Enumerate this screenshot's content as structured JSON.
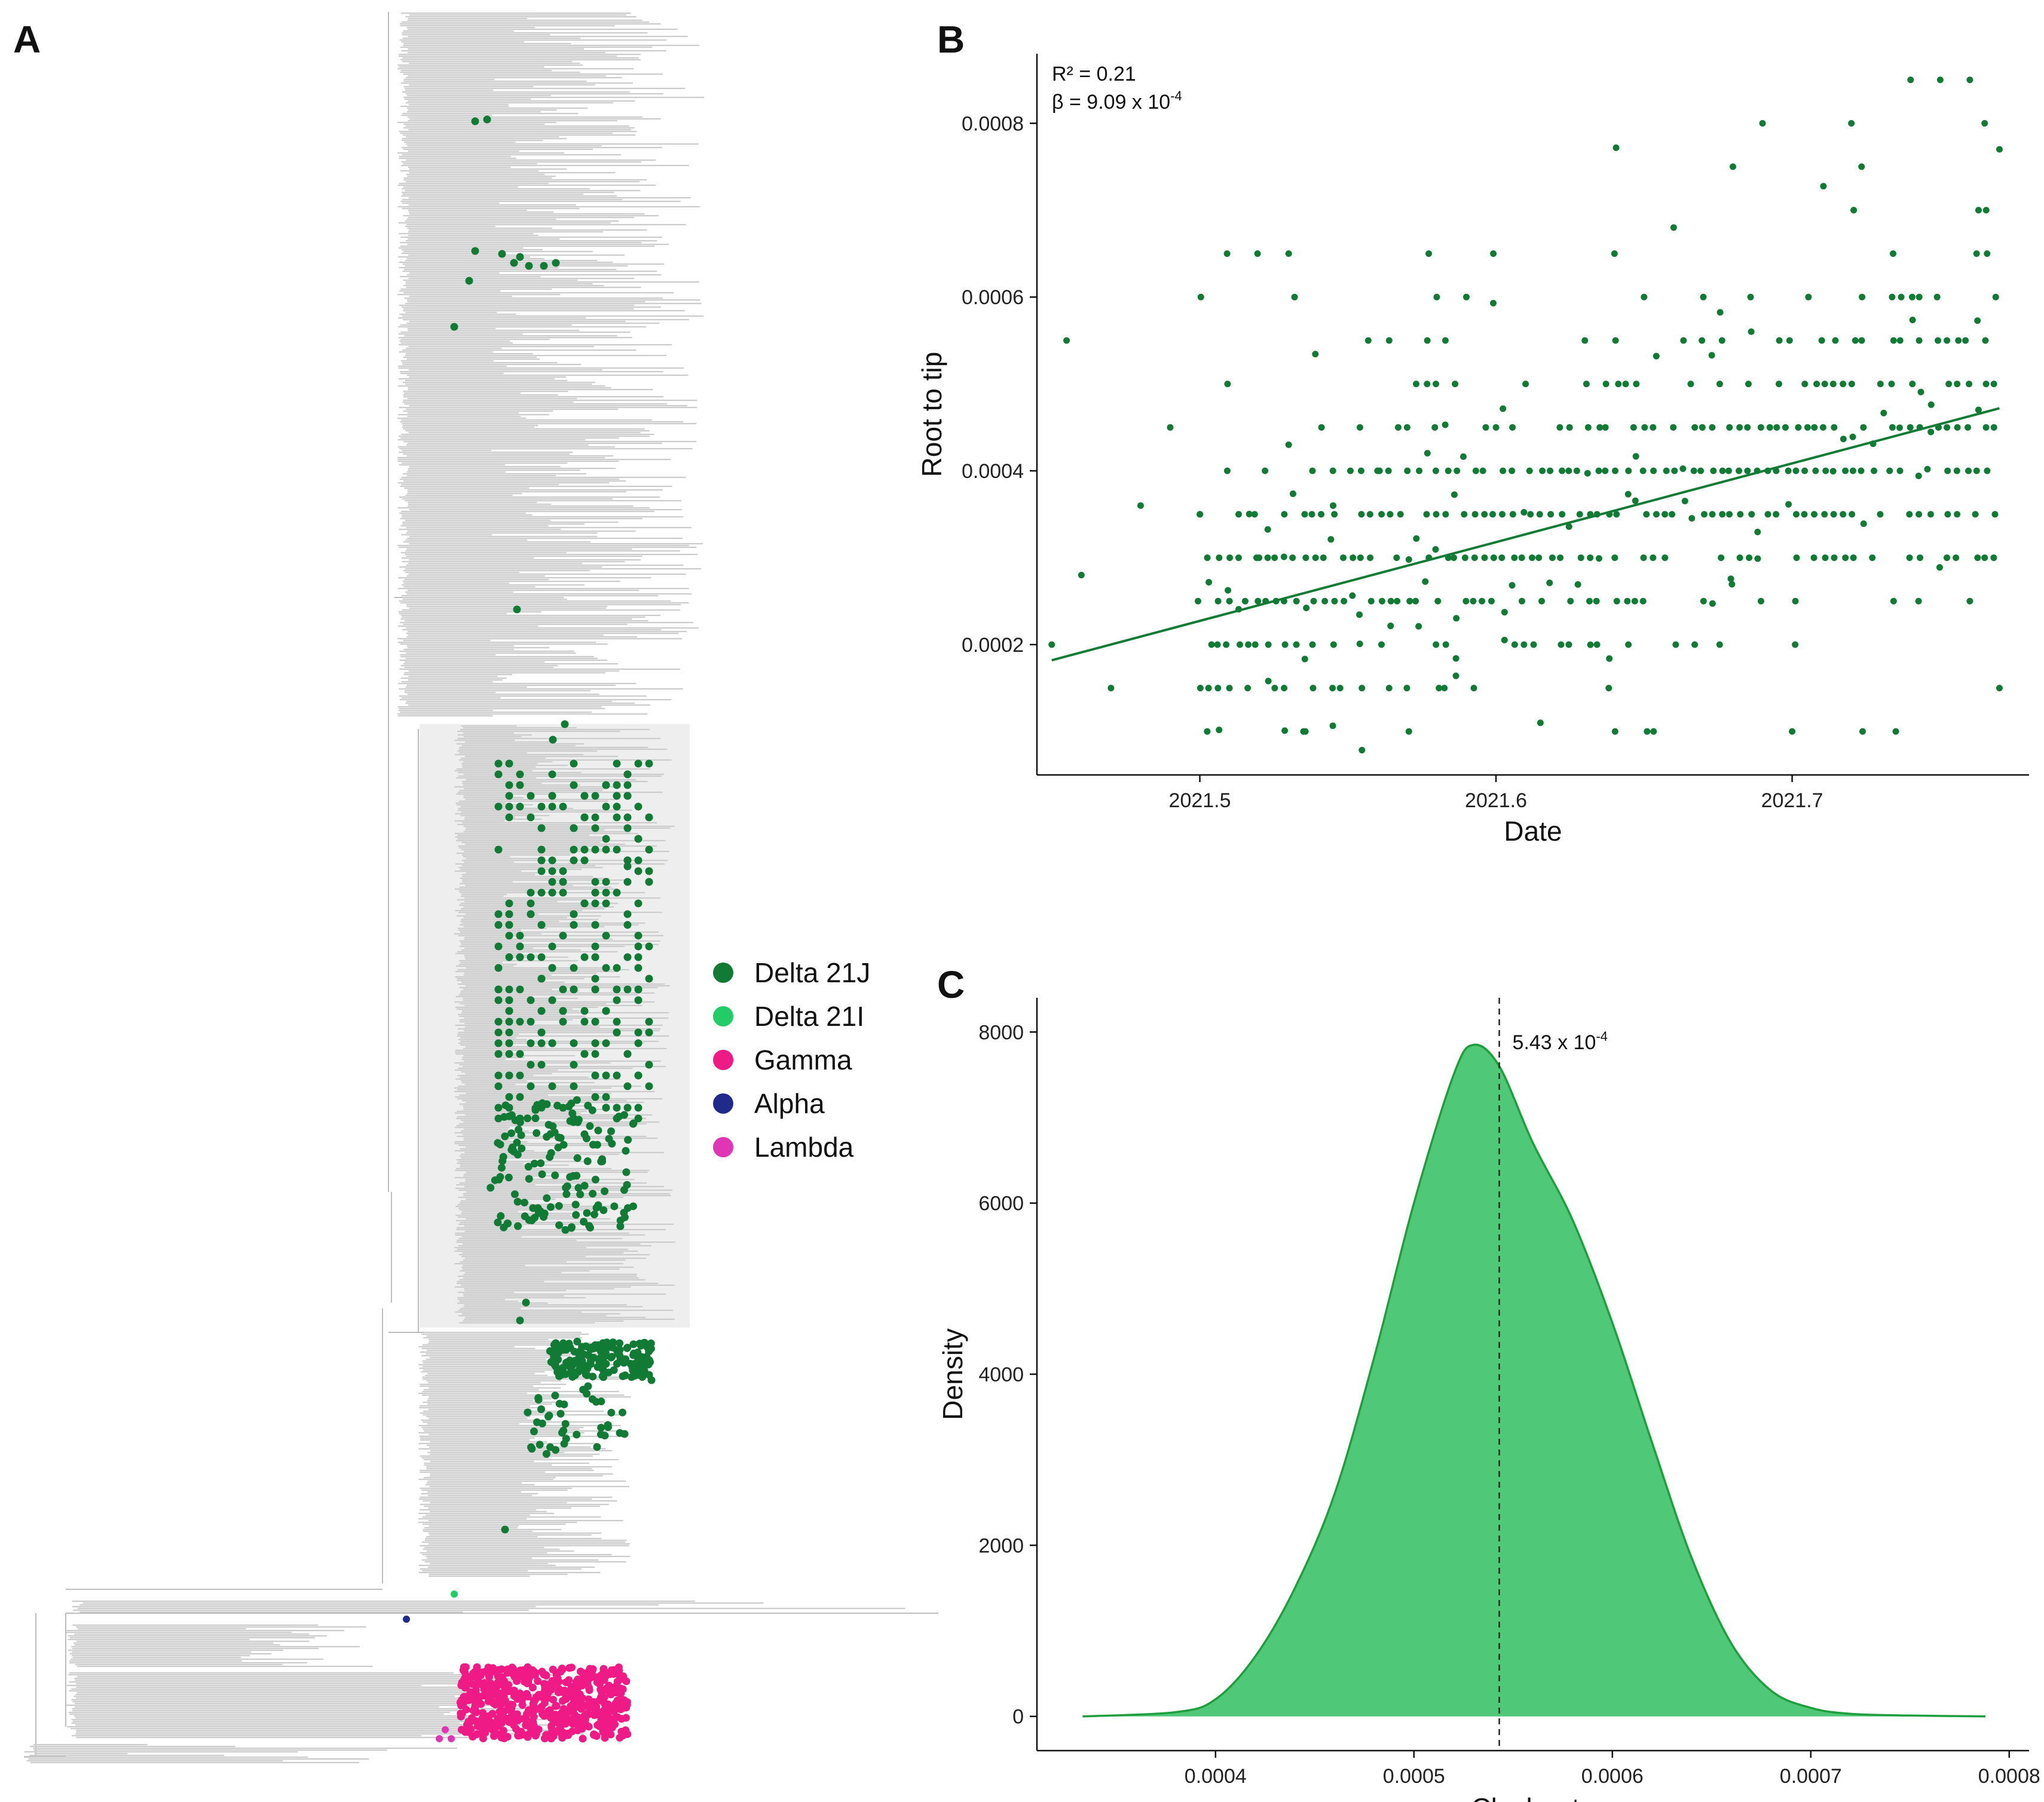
{
  "panels": {
    "a": {
      "letter": "A"
    },
    "b": {
      "letter": "B"
    },
    "c": {
      "letter": "C"
    }
  },
  "colors": {
    "delta21j": "#117a35",
    "delta21i": "#22cc66",
    "gamma": "#f01a86",
    "alpha": "#1f2a8a",
    "lambda": "#e035b5",
    "branch": "#cccccc",
    "highlight": "#eeeeee",
    "density_fill": "#4fc878",
    "density_line": "#1e9e3c"
  },
  "legend": [
    {
      "label": "Delta 21J",
      "color": "#117a35"
    },
    {
      "label": "Delta 21I",
      "color": "#22cc66"
    },
    {
      "label": "Gamma",
      "color": "#f01a86"
    },
    {
      "label": "Alpha",
      "color": "#1f2a8a"
    },
    {
      "label": "Lambda",
      "color": "#e035b5"
    }
  ],
  "chart_data": [
    {
      "panel": "B",
      "type": "scatter",
      "title": "",
      "xlabel": "Date",
      "ylabel": "Root to tip",
      "xlim": [
        2021.445,
        2021.78
      ],
      "ylim": [
        5e-05,
        0.00088
      ],
      "xticks": [
        2021.5,
        2021.6,
        2021.7
      ],
      "xtick_labels": [
        "2021.5",
        "2021.6",
        "2021.7"
      ],
      "yticks": [
        0.0002,
        0.0004,
        0.0006,
        0.0008
      ],
      "ytick_labels": [
        "0.0002",
        "0.0004",
        "0.0006",
        "0.0008"
      ],
      "annotation_r2": "R² = 0.21",
      "annotation_beta": "β = 9.09 x 10",
      "annotation_beta_exp": "-4",
      "regression": {
        "x": [
          2021.45,
          2021.77
        ],
        "y": [
          0.000182,
          0.000472
        ]
      },
      "point_color": "#117a35",
      "points": [
        [
          2021.45,
          0.0002
        ],
        [
          2021.455,
          0.00055
        ],
        [
          2021.46,
          0.00028
        ],
        [
          2021.47,
          0.00015
        ],
        [
          2021.48,
          0.00036
        ],
        [
          2021.49,
          0.00045
        ],
        [
          2021.5,
          0.00035
        ],
        [
          2021.51,
          0.00025
        ],
        [
          2021.52,
          0.0003
        ],
        [
          2021.53,
          0.00065
        ],
        [
          2021.53,
          0.00043
        ],
        [
          2021.535,
          0.0001
        ],
        [
          2021.545,
          0.00036
        ],
        [
          2021.56,
          0.0004
        ],
        [
          2021.57,
          0.00045
        ],
        [
          2021.58,
          0.0006
        ],
        [
          2021.59,
          0.0006
        ],
        [
          2021.6,
          0.00045
        ],
        [
          2021.61,
          0.0005
        ],
        [
          2021.615,
          0.00011
        ],
        [
          2021.63,
          0.00055
        ],
        [
          2021.64,
          0.00065
        ],
        [
          2021.65,
          0.0006
        ],
        [
          2021.66,
          0.00068
        ],
        [
          2021.67,
          0.0006
        ],
        [
          2021.68,
          0.00075
        ],
        [
          2021.69,
          0.0008
        ],
        [
          2021.7,
          0.0001
        ],
        [
          2021.71,
          0.00055
        ],
        [
          2021.72,
          0.0008
        ],
        [
          2021.735,
          0.0001
        ],
        [
          2021.74,
          0.00085
        ],
        [
          2021.75,
          0.00085
        ],
        [
          2021.76,
          0.00085
        ],
        [
          2021.765,
          0.0008
        ],
        [
          2021.77,
          0.00077
        ],
        [
          2021.77,
          0.00015
        ],
        [
          2021.765,
          0.0003
        ],
        [
          2021.76,
          0.00025
        ]
      ]
    },
    {
      "panel": "C",
      "type": "area",
      "title": "",
      "xlabel": "Clock rate",
      "ylabel": "Density",
      "xlim": [
        0.00031,
        0.00081
      ],
      "ylim": [
        -400,
        8400
      ],
      "xticks": [
        0.0004,
        0.0005,
        0.0006,
        0.0007,
        0.0008
      ],
      "xtick_labels": [
        "0.0004",
        "0.0005",
        "0.0006",
        "0.0007",
        "0.0008"
      ],
      "yticks": [
        0,
        2000,
        4000,
        6000,
        8000
      ],
      "ytick_labels": [
        "0",
        "2000",
        "4000",
        "6000",
        "8000"
      ],
      "vline": 0.000543,
      "vline_label": "5.43 x 10",
      "vline_label_exp": "-4",
      "x": [
        0.000333,
        0.00038,
        0.0004,
        0.00042,
        0.00044,
        0.00046,
        0.00048,
        0.0005,
        0.00052,
        0.00053,
        0.000543,
        0.00056,
        0.00058,
        0.0006,
        0.00062,
        0.00064,
        0.00066,
        0.00068,
        0.0007,
        0.00072,
        0.00075,
        0.000788
      ],
      "y": [
        0,
        50,
        200,
        700,
        1500,
        2600,
        4200,
        6000,
        7500,
        7850,
        7600,
        6700,
        5800,
        4600,
        3200,
        1850,
        850,
        300,
        100,
        30,
        10,
        0
      ]
    }
  ]
}
